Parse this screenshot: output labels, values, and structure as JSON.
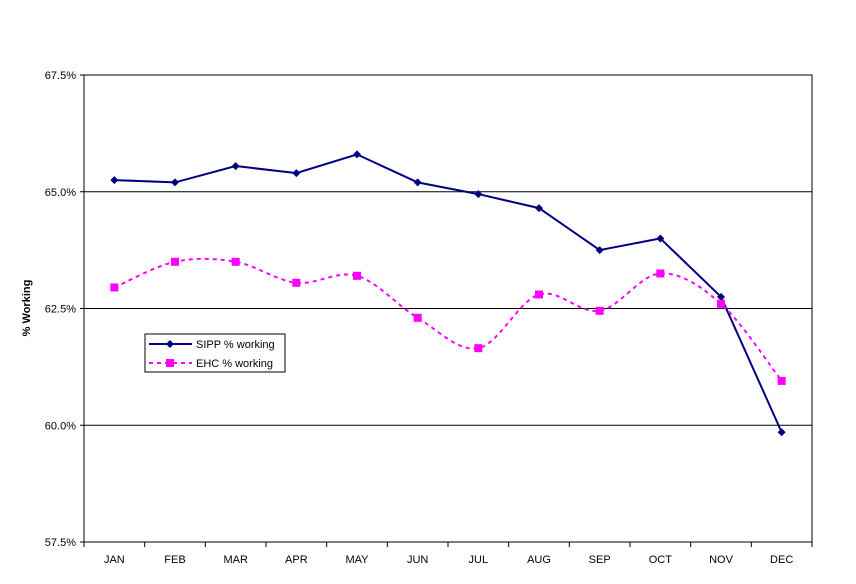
{
  "chart_data": {
    "type": "line",
    "ylabel": "% Working",
    "categories": [
      "JAN",
      "FEB",
      "MAR",
      "APR",
      "MAY",
      "JUN",
      "JUL",
      "AUG",
      "SEP",
      "OCT",
      "NOV",
      "DEC"
    ],
    "ylim": [
      57.5,
      67.5
    ],
    "yticks": [
      "57.5%",
      "60.0%",
      "62.5%",
      "65.0%",
      "67.5%"
    ],
    "ytick_values": [
      57.5,
      60.0,
      62.5,
      65.0,
      67.5
    ],
    "grid": "horizontal major gridlines",
    "legend_placement": "left-center",
    "series": [
      {
        "name": "SIPP % working",
        "color": "#000080",
        "line": "solid",
        "marker": "diamond",
        "values": [
          65.25,
          65.2,
          65.55,
          65.4,
          65.8,
          65.2,
          64.95,
          64.65,
          63.75,
          64.0,
          62.75,
          59.85
        ]
      },
      {
        "name": "EHC % working",
        "color": "#FF00FF",
        "line": "dashed",
        "marker": "square",
        "values": [
          62.95,
          63.5,
          63.5,
          63.05,
          63.2,
          62.3,
          61.65,
          62.8,
          62.45,
          63.25,
          62.6,
          60.95
        ]
      }
    ]
  }
}
